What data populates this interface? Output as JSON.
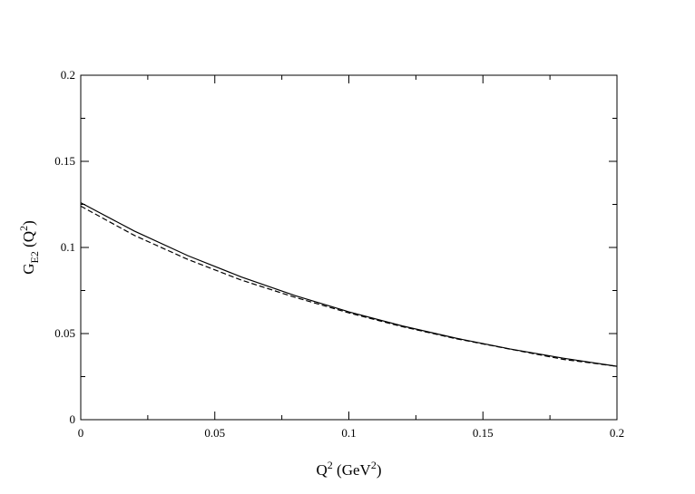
{
  "chart_data": {
    "type": "line",
    "xlabel": [
      {
        "text": "Q"
      },
      {
        "text": "2",
        "shift": "sup"
      },
      {
        "text": "  (GeV"
      },
      {
        "text": "2",
        "shift": "sup"
      },
      {
        "text": ")"
      }
    ],
    "ylabel": [
      {
        "text": "G"
      },
      {
        "text": "E2",
        "shift": "sub"
      },
      {
        "text": " (Q"
      },
      {
        "text": "2",
        "shift": "sup"
      },
      {
        "text": ")"
      }
    ],
    "x": [
      0,
      0.02,
      0.04,
      0.06,
      0.08,
      0.1,
      0.12,
      0.14,
      0.16,
      0.18,
      0.2
    ],
    "series": [
      {
        "color": "#000000",
        "dash": false,
        "values": [
          0.126,
          0.1095,
          0.0952,
          0.0828,
          0.072,
          0.0626,
          0.0544,
          0.0473,
          0.0411,
          0.0357,
          0.031
        ]
      },
      {
        "color": "#000000",
        "dash": true,
        "values": [
          0.124,
          0.107,
          0.093,
          0.081,
          0.071,
          0.062,
          0.054,
          0.047,
          0.041,
          0.035,
          0.031
        ]
      }
    ],
    "xlim": [
      0,
      0.2
    ],
    "ylim": [
      0,
      0.2
    ],
    "xticks": [
      0,
      0.05,
      0.1,
      0.15,
      0.2
    ],
    "yticks": [
      0,
      0.05,
      0.1,
      0.15,
      0.2
    ],
    "xminorticks": [
      0.025,
      0.075,
      0.125,
      0.175
    ],
    "yminorticks": [
      0.025,
      0.075,
      0.125,
      0.175
    ]
  }
}
